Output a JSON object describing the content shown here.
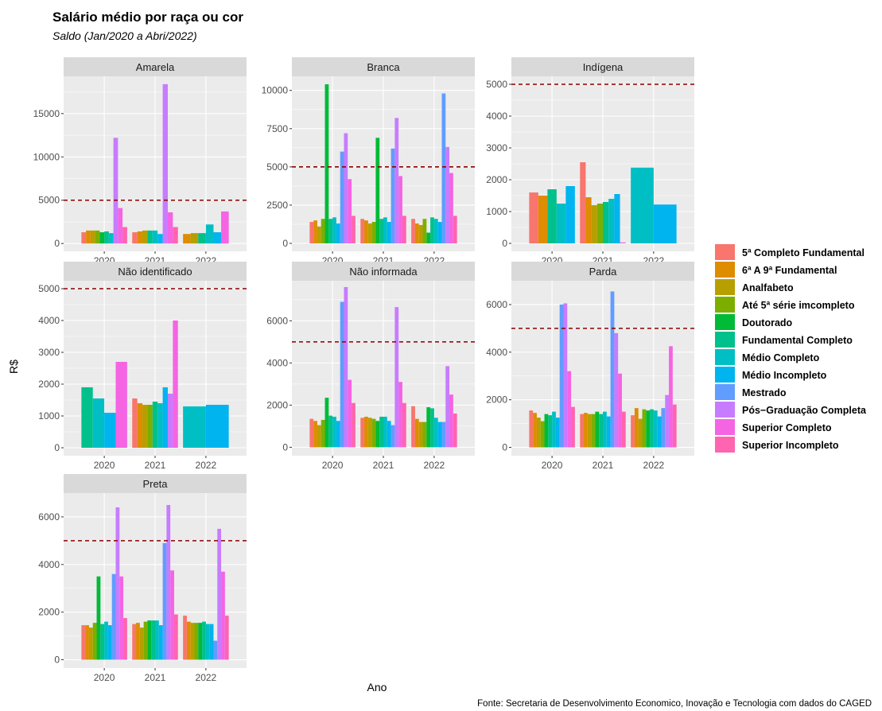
{
  "chart_data": {
    "type": "bar",
    "title": "Salário médio por raça ou cor",
    "subtitle": "Saldo (Jan/2020 a Abri/2022)",
    "xlabel": "Ano",
    "ylabel": "R$",
    "caption": "Fonte: Secretaria de Desenvolvimento Economico, Inovação e Tecnologia com dados do CAGED",
    "reference_line": 5000,
    "reference_line_color": "#8B0000",
    "grid": true,
    "legend_position": "right",
    "categories": [
      "2020",
      "2021",
      "2022"
    ],
    "series": [
      {
        "name": "5ª Completo Fundamental",
        "color": "#F8766D"
      },
      {
        "name": "6ª A 9ª Fundamental",
        "color": "#DE8C00"
      },
      {
        "name": "Analfabeto",
        "color": "#B79F00"
      },
      {
        "name": "Até 5ª série imcompleto",
        "color": "#7CAE00"
      },
      {
        "name": "Doutorado",
        "color": "#00BA38"
      },
      {
        "name": "Fundamental Completo",
        "color": "#00C08B"
      },
      {
        "name": "Médio Completo",
        "color": "#00BFC4"
      },
      {
        "name": "Médio Incompleto",
        "color": "#00B4F0"
      },
      {
        "name": "Mestrado",
        "color": "#619CFF"
      },
      {
        "name": "Pós−Graduação Completa",
        "color": "#C77CFF"
      },
      {
        "name": "Superior Completo",
        "color": "#F564E3"
      },
      {
        "name": "Superior Incompleto",
        "color": "#FF64B0"
      }
    ],
    "panels": [
      {
        "name": "Amarela",
        "ylim": [
          -900,
          19300
        ],
        "yticks": [
          0,
          5000,
          10000,
          15000
        ],
        "ytick_labels": [
          "0",
          "5000",
          "10000",
          "15000"
        ],
        "values": [
          [
            1300,
            1500,
            1500,
            1500,
            1300,
            1400,
            1200,
            null,
            null,
            12200,
            4100,
            1900
          ],
          [
            1300,
            1400,
            1500,
            null,
            null,
            1500,
            1500,
            1100,
            null,
            18400,
            3600,
            1900
          ],
          [
            null,
            1100,
            1200,
            null,
            null,
            1200,
            2200,
            1300,
            null,
            null,
            3700,
            null
          ]
        ]
      },
      {
        "name": "Branca",
        "ylim": [
          -520,
          10920
        ],
        "yticks": [
          0,
          2500,
          5000,
          7500,
          10000
        ],
        "ytick_labels": [
          "0",
          "2500",
          "5000",
          "7500",
          "10000"
        ],
        "values": [
          [
            1400,
            1500,
            1100,
            1600,
            10400,
            1600,
            1700,
            1300,
            6000,
            7200,
            4200,
            1800
          ],
          [
            1600,
            1500,
            1300,
            1400,
            6900,
            1600,
            1700,
            1400,
            6200,
            8200,
            4400,
            1800
          ],
          [
            1600,
            1300,
            1200,
            1600,
            700,
            1700,
            1600,
            1400,
            9800,
            6300,
            4600,
            1800
          ]
        ]
      },
      {
        "name": "Indígena",
        "ylim": [
          -250,
          5250
        ],
        "yticks": [
          0,
          1000,
          2000,
          3000,
          4000,
          5000
        ],
        "ytick_labels": [
          "0",
          "1000",
          "2000",
          "3000",
          "4000",
          "5000"
        ],
        "values": [
          [
            1600,
            1500,
            null,
            null,
            null,
            1700,
            1250,
            1800,
            null,
            null,
            null,
            null
          ],
          [
            2550,
            1450,
            1200,
            1250,
            null,
            1300,
            1400,
            1550,
            null,
            null,
            30,
            null
          ],
          [
            null,
            null,
            null,
            null,
            null,
            null,
            2380,
            1220,
            null,
            null,
            null,
            null
          ]
        ]
      },
      {
        "name": "Não identificado",
        "ylim": [
          -250,
          5250
        ],
        "yticks": [
          0,
          1000,
          2000,
          3000,
          4000,
          5000
        ],
        "ytick_labels": [
          "0",
          "1000",
          "2000",
          "3000",
          "4000",
          "5000"
        ],
        "values": [
          [
            null,
            null,
            null,
            null,
            null,
            1900,
            1550,
            1100,
            null,
            null,
            2700,
            null
          ],
          [
            1550,
            1400,
            1350,
            1350,
            null,
            1450,
            1400,
            1900,
            null,
            1700,
            4000,
            null
          ],
          [
            null,
            null,
            null,
            null,
            null,
            null,
            1300,
            1350,
            null,
            null,
            null,
            null
          ]
        ]
      },
      {
        "name": "Não informada",
        "ylim": [
          -400,
          7900
        ],
        "yticks": [
          0,
          2000,
          4000,
          6000
        ],
        "ytick_labels": [
          "0",
          "2000",
          "4000",
          "6000"
        ],
        "values": [
          [
            1350,
            1250,
            1050,
            1300,
            2350,
            1500,
            1450,
            1250,
            6900,
            7600,
            3200,
            2100
          ],
          [
            1400,
            1450,
            1400,
            1350,
            1250,
            1450,
            1450,
            1250,
            1050,
            6650,
            3100,
            2100
          ],
          [
            1950,
            1350,
            1200,
            1200,
            1900,
            1850,
            1400,
            1200,
            1200,
            3850,
            2500,
            1600
          ]
        ]
      },
      {
        "name": "Parda",
        "ylim": [
          -350,
          7000
        ],
        "yticks": [
          0,
          2000,
          4000,
          6000
        ],
        "ytick_labels": [
          "0",
          "2000",
          "4000",
          "6000"
        ],
        "values": [
          [
            1550,
            1450,
            1250,
            1100,
            1400,
            1350,
            1500,
            1250,
            6000,
            6050,
            3200,
            1700
          ],
          [
            1400,
            1450,
            1400,
            1400,
            1500,
            1400,
            1500,
            1300,
            6550,
            4800,
            3100,
            1500
          ],
          [
            1350,
            1650,
            1200,
            1600,
            1550,
            1600,
            1550,
            1300,
            1650,
            2200,
            4250,
            1800
          ]
        ]
      },
      {
        "name": "Preta",
        "ylim": [
          -350,
          7000
        ],
        "yticks": [
          0,
          2000,
          4000,
          6000
        ],
        "ytick_labels": [
          "0",
          "2000",
          "4000",
          "6000"
        ],
        "values": [
          [
            1450,
            1450,
            1350,
            1550,
            3500,
            1500,
            1600,
            1450,
            3600,
            6400,
            3500,
            1750
          ],
          [
            1500,
            1550,
            1350,
            1600,
            1650,
            1650,
            1650,
            1450,
            4900,
            6500,
            3750,
            1900
          ],
          [
            1850,
            1600,
            1550,
            1550,
            1550,
            1600,
            1500,
            1500,
            800,
            5500,
            3700,
            1850
          ]
        ]
      }
    ]
  }
}
